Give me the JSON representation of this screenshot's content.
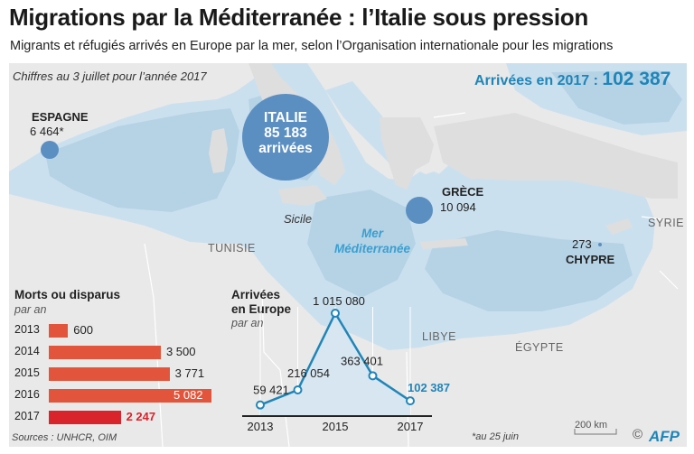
{
  "header": {
    "title": "Migrations par la Méditerranée : l’Italie sous pression",
    "subtitle": "Migrants et réfugiés arrivés en Europe par la mer, selon l’Organisation internationale pour les migrations"
  },
  "map": {
    "date_note": "Chiffres au 3 juillet pour l’année 2017",
    "arrivals_total": {
      "label": "Arrivées en 2017 : ",
      "value": "102 387"
    },
    "countries": {
      "spain": {
        "name": "ESPAGNE",
        "value": "6 464*"
      },
      "italy": {
        "name": "ITALIE",
        "value": "85 183",
        "unit": "arrivées"
      },
      "greece": {
        "name": "GRÈCE",
        "value": "10 094"
      },
      "cyprus": {
        "name": "CHYPRE",
        "value": "273"
      }
    },
    "regions": {
      "sicily": "Sicile",
      "tunisia": "TUNISIE",
      "libya": "LIBYE",
      "egypt": "ÉGYPTE",
      "syria": "SYRIE",
      "sea_line1": "Mer",
      "sea_line2": "Méditerranée"
    },
    "scale_label": "200 km"
  },
  "chart_data": [
    {
      "type": "bar",
      "title": "Morts ou disparus",
      "subtitle": "par an",
      "categories": [
        "2013",
        "2014",
        "2015",
        "2016",
        "2017"
      ],
      "values": [
        600,
        3500,
        3771,
        5082,
        2247
      ],
      "value_labels": [
        "600",
        "3 500",
        "3 771",
        "5 082",
        "2 247"
      ],
      "colors": [
        "#e2553c",
        "#e2553c",
        "#e2553c",
        "#e2553c",
        "#d8242a"
      ]
    },
    {
      "type": "line",
      "title_line1": "Arrivées",
      "title_line2": "en Europe",
      "subtitle": "par an",
      "x": [
        2013,
        2014,
        2015,
        2016,
        2017
      ],
      "values": [
        59421,
        216054,
        1015080,
        363401,
        102387
      ],
      "value_labels": [
        "59 421",
        "216 054",
        "1 015 080",
        "363 401",
        "102 387"
      ],
      "tick_labels": [
        "2013",
        "2015",
        "2017"
      ],
      "ylim": [
        0,
        1015080
      ],
      "line_color": "#1f85b8"
    }
  ],
  "footer": {
    "sources": "Sources : UNHCR, OIM",
    "asterisk_note": "*au 25 juin",
    "copyright": "©",
    "logo": "AFP"
  }
}
